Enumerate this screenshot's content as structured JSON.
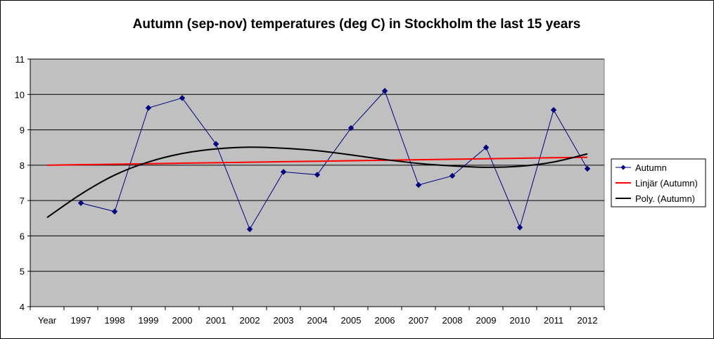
{
  "chart_data": {
    "type": "line",
    "title": "Autumn (sep-nov) temperatures (deg C) in Stockholm the last 15 years",
    "categories": [
      "Year",
      "1997",
      "1998",
      "1999",
      "2000",
      "2001",
      "2002",
      "2003",
      "2004",
      "2005",
      "2006",
      "2007",
      "2008",
      "2009",
      "2010",
      "2011",
      "2012"
    ],
    "ylim": [
      4,
      11
    ],
    "yticks": [
      "4",
      "5",
      "6",
      "7",
      "8",
      "9",
      "10",
      "11"
    ],
    "grid": true,
    "legend_position": "right",
    "series": [
      {
        "name": "Autumn",
        "kind": "data",
        "color": "#000080",
        "marker": "diamond",
        "values": [
          null,
          6.93,
          6.69,
          9.62,
          9.9,
          8.6,
          6.19,
          7.81,
          7.73,
          9.05,
          10.1,
          7.44,
          7.7,
          8.5,
          6.24,
          9.56,
          7.9
        ]
      },
      {
        "name": "Linjär (Autumn)",
        "kind": "linear-trend",
        "color": "#ff0000",
        "values": [
          8.0,
          8.014,
          8.028,
          8.042,
          8.056,
          8.07,
          8.084,
          8.098,
          8.112,
          8.126,
          8.14,
          8.154,
          8.168,
          8.182,
          8.196,
          8.21,
          8.224
        ]
      },
      {
        "name": "Poly. (Autumn)",
        "kind": "polynomial-trend",
        "color": "#000000",
        "values": [
          6.52,
          7.18,
          7.72,
          8.09,
          8.33,
          8.46,
          8.51,
          8.48,
          8.41,
          8.29,
          8.16,
          8.05,
          7.98,
          7.94,
          7.97,
          8.09,
          8.32
        ]
      }
    ]
  }
}
